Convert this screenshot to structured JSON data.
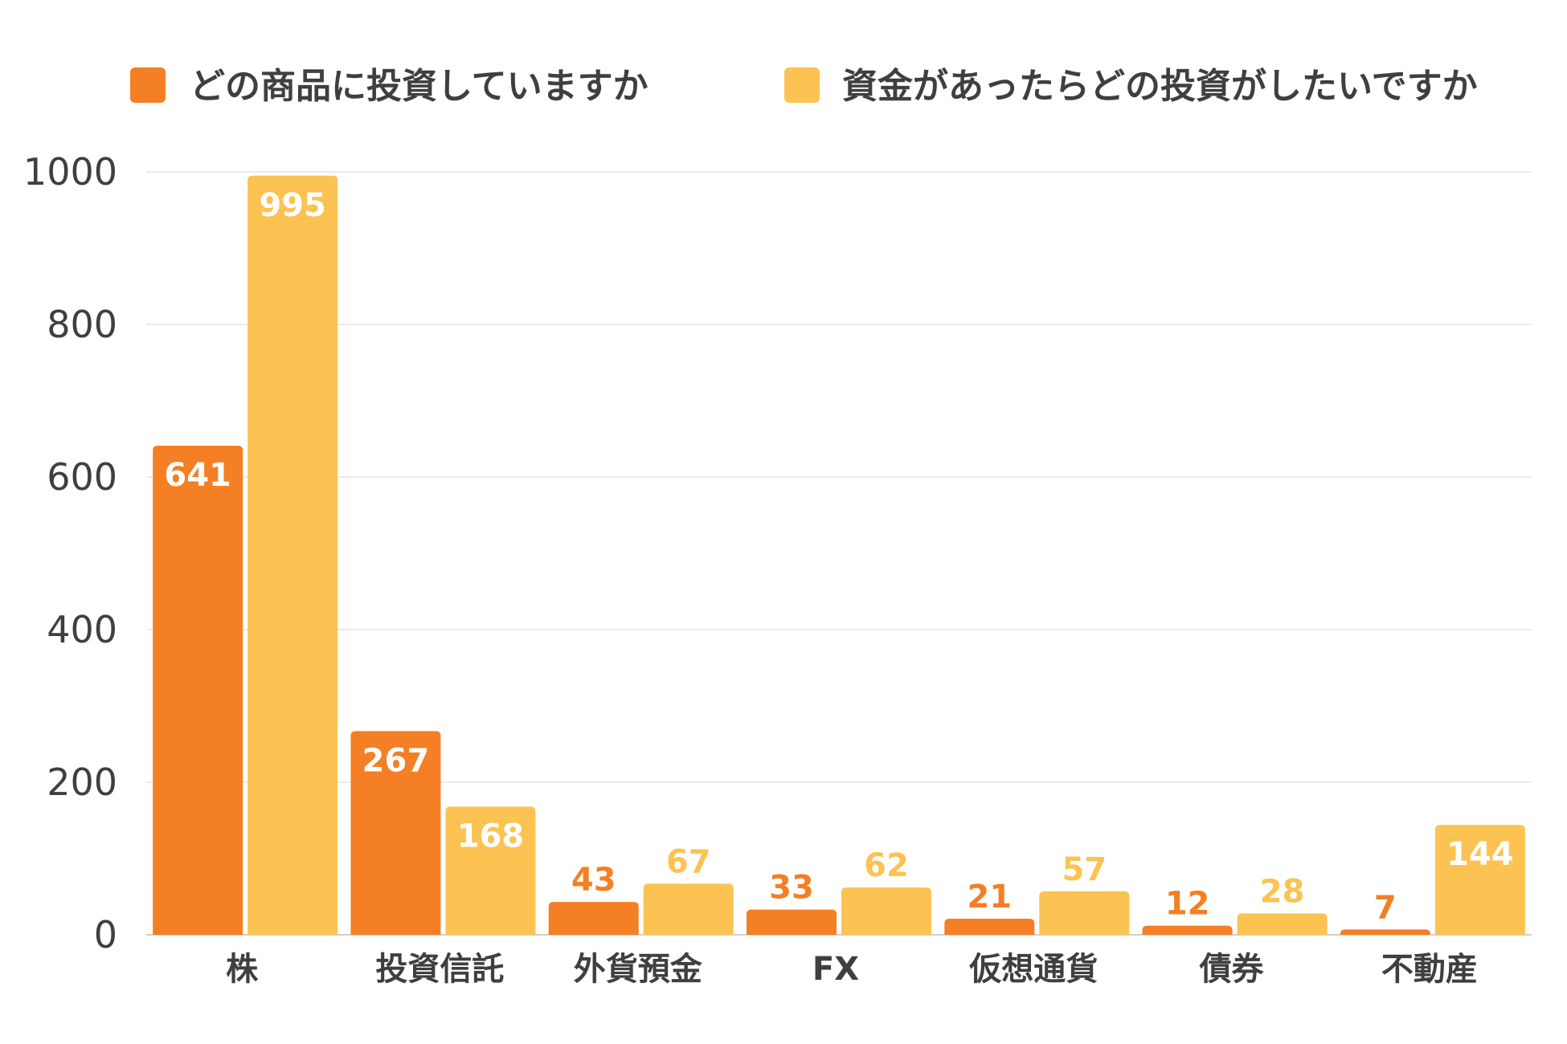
{
  "chart_data": {
    "type": "bar",
    "categories": [
      "株",
      "投資信託",
      "外貨預金",
      "FX",
      "仮想通貨",
      "債券",
      "不動産"
    ],
    "series": [
      {
        "name": "どの商品に投資していますか",
        "color": "#f47f24",
        "values": [
          641,
          267,
          43,
          33,
          21,
          12,
          7
        ]
      },
      {
        "name": "資金があったらどの投資がしたいですか",
        "color": "#fcc352",
        "values": [
          995,
          168,
          67,
          62,
          57,
          28,
          144
        ]
      }
    ],
    "yticks": [
      "0",
      "200",
      "400",
      "600",
      "800",
      "1000"
    ],
    "ylim": [
      0,
      1000
    ],
    "grid": true,
    "legend_position": "top",
    "data_labels": true
  }
}
